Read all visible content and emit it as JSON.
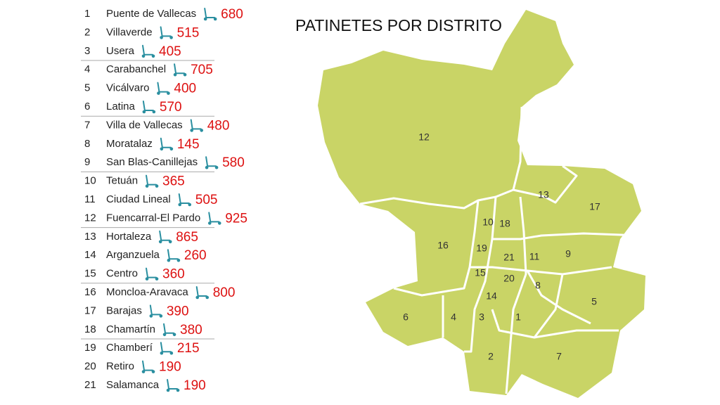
{
  "title": "PATINETES POR DISTRITO",
  "districts": [
    {
      "number": 1,
      "name": "Puente de Vallecas",
      "count": 680
    },
    {
      "number": 2,
      "name": "Villaverde",
      "count": 515
    },
    {
      "number": 3,
      "name": "Usera",
      "count": 405
    },
    {
      "number": 4,
      "name": "Carabanchel",
      "count": 705
    },
    {
      "number": 5,
      "name": "Vicálvaro",
      "count": 400
    },
    {
      "number": 6,
      "name": "Latina",
      "count": 570
    },
    {
      "number": 7,
      "name": "Villa de Vallecas",
      "count": 480
    },
    {
      "number": 8,
      "name": "Moratalaz",
      "count": 145
    },
    {
      "number": 9,
      "name": "San Blas-Canillejas",
      "count": 580
    },
    {
      "number": 10,
      "name": "Tetuán",
      "count": 365
    },
    {
      "number": 11,
      "name": "Ciudad Lineal",
      "count": 505
    },
    {
      "number": 12,
      "name": "Fuencarral-El Pardo",
      "count": 925
    },
    {
      "number": 13,
      "name": "Hortaleza",
      "count": 865
    },
    {
      "number": 14,
      "name": "Arganzuela",
      "count": 260
    },
    {
      "number": 15,
      "name": "Centro",
      "count": 360
    },
    {
      "number": 16,
      "name": "Moncloa-Aravaca",
      "count": 800
    },
    {
      "number": 17,
      "name": "Barajas",
      "count": 390
    },
    {
      "number": 18,
      "name": "Chamartín",
      "count": 380
    },
    {
      "number": 19,
      "name": "Chamberí",
      "count": 215
    },
    {
      "number": 20,
      "name": "Retiro",
      "count": 190
    },
    {
      "number": 21,
      "name": "Salamanca",
      "count": 190
    }
  ]
}
